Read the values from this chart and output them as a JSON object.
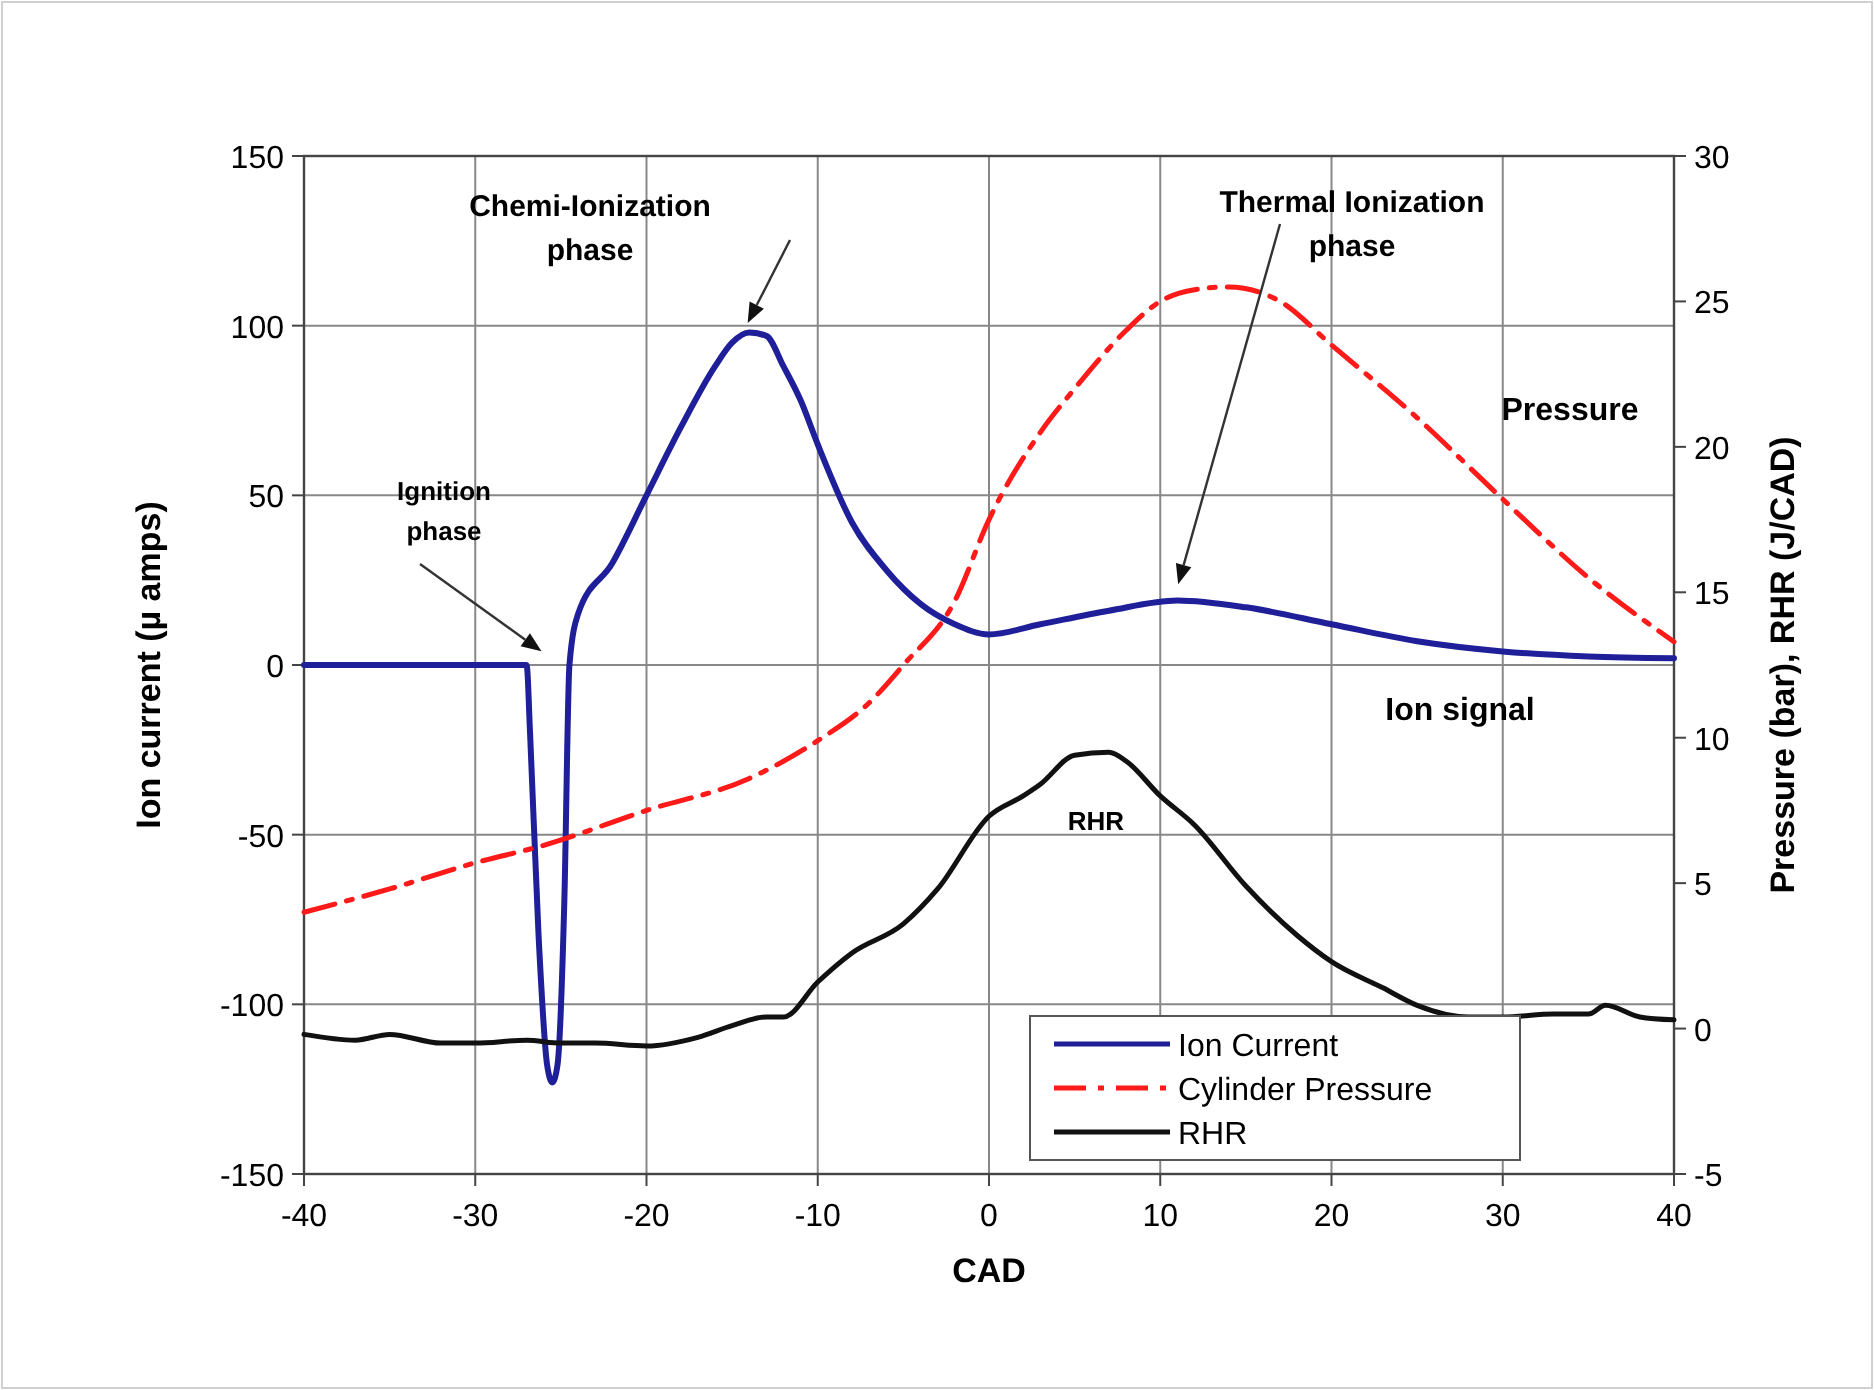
{
  "chart_data": {
    "type": "line",
    "xlabel": "CAD",
    "ylabel": "Ion current (µ amps)",
    "y2label": "Pressure (bar), RHR (J/CAD)",
    "xlim": [
      -40,
      40
    ],
    "xticks": [
      -40,
      -30,
      -20,
      -10,
      0,
      10,
      20,
      30,
      40
    ],
    "ylim": [
      -150,
      150
    ],
    "yticks": [
      -150,
      -100,
      -50,
      0,
      50,
      100,
      150
    ],
    "y2lim": [
      -5,
      30
    ],
    "y2ticks": [
      -5,
      0,
      5,
      10,
      15,
      20,
      25,
      30
    ],
    "grid": true,
    "legend": "bottom right",
    "series": [
      {
        "name": "Ion Current",
        "color": "#1f1f99",
        "line_style": "solid",
        "x": [
          -40,
          -27,
          -26.8,
          -26.3,
          -25.8,
          -25.5,
          -25.2,
          -24.8,
          -24.5,
          -24,
          -22,
          -20,
          -18,
          -16,
          -15,
          -14,
          -13,
          -12,
          -11,
          -10,
          -8,
          -6,
          -4,
          -2,
          0,
          3,
          7,
          11,
          15,
          20,
          25,
          30,
          35,
          40
        ],
        "values": [
          0,
          0,
          -20,
          -80,
          -118,
          -123,
          -118,
          -70,
          0,
          15,
          30,
          50,
          70,
          88,
          95,
          98,
          97,
          88,
          78,
          65,
          42,
          28,
          18,
          12,
          9,
          12,
          16,
          19,
          17,
          12,
          7,
          4,
          2.5,
          2
        ]
      },
      {
        "name": "Cylinder Pressure",
        "color": "#ff1a1a",
        "line_style": "dashed",
        "axis": "y2",
        "x": [
          -40,
          -35,
          -30,
          -26,
          -20,
          -14,
          -10,
          -7,
          -5,
          -2,
          0,
          3,
          5,
          8,
          10,
          12,
          14,
          17,
          20,
          25,
          30,
          35,
          40
        ],
        "values": [
          4,
          4.8,
          5.7,
          6.3,
          7.5,
          8.6,
          9.9,
          11.2,
          12.5,
          14.7,
          17.5,
          20.5,
          22,
          24,
          25,
          25.4,
          25.5,
          25,
          23.5,
          21,
          18.2,
          15.5,
          13.3
        ]
      },
      {
        "name": "RHR",
        "color": "#111111",
        "line_style": "solid",
        "axis": "y2",
        "x": [
          -40,
          -37,
          -35,
          -32,
          -30,
          -27,
          -25,
          -23,
          -20,
          -17,
          -15,
          -13,
          -12,
          -10,
          -8,
          -5,
          -3,
          0,
          2,
          3,
          5,
          7,
          8,
          10,
          12,
          15,
          18,
          20,
          23,
          25,
          28,
          30,
          33,
          35,
          36,
          38,
          40
        ],
        "values": [
          -0.2,
          -0.4,
          -0.2,
          -0.5,
          -0.5,
          -0.4,
          -0.5,
          -0.5,
          -0.6,
          -0.3,
          0.1,
          0.4,
          0.4,
          1.6,
          2.6,
          3.6,
          4.8,
          7.3,
          8,
          8.4,
          9.4,
          9.5,
          9.2,
          8,
          7,
          4.9,
          3.2,
          2.3,
          1.4,
          0.8,
          0.4,
          0.4,
          0.5,
          0.5,
          0.8,
          0.4,
          0.3
        ]
      }
    ],
    "annotations": [
      "Chemi-Ionization phase",
      "Ignition phase",
      "Thermal Ionization phase",
      "Pressure",
      "Ion signal",
      "RHR"
    ]
  }
}
